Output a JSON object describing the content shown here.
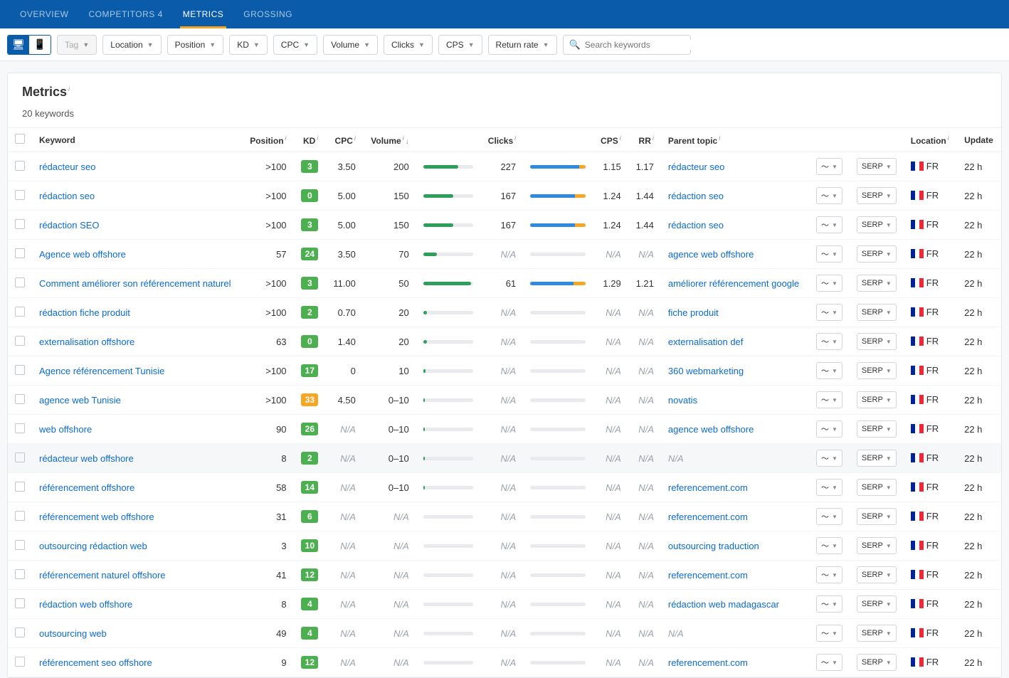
{
  "nav": {
    "tabs": [
      "OVERVIEW",
      "COMPETITORS 4",
      "METRICS",
      "GROSSING"
    ],
    "active": 2
  },
  "filters": {
    "tag": "Tag",
    "location": "Location",
    "position": "Position",
    "kd": "KD",
    "cpc": "CPC",
    "volume": "Volume",
    "clicks": "Clicks",
    "cps": "CPS",
    "return": "Return rate",
    "search_placeholder": "Search keywords"
  },
  "panel": {
    "title": "Metrics",
    "count": "20 keywords"
  },
  "headers": {
    "keyword": "Keyword",
    "position": "Position",
    "kd": "KD",
    "cpc": "CPC",
    "volume": "Volume",
    "clicks": "Clicks",
    "cps": "CPS",
    "rr": "RR",
    "parent": "Parent topic",
    "location": "Location",
    "update": "Update",
    "serp": "SERP"
  },
  "kd_colors": {
    "green": "#4caf50",
    "dark_green": "#2e7d32",
    "orange": "#f5a623"
  },
  "loc": {
    "code": "FR",
    "flag": [
      "#002395",
      "#ffffff",
      "#ed2939"
    ]
  },
  "rows": [
    {
      "kw": "rédacteur seo",
      "pos": ">100",
      "kd": 3,
      "kdc": "green",
      "cpc": "3.50",
      "vol": "200",
      "volpct": 70,
      "clicks": "227",
      "clkpct": 88,
      "cps": "1.15",
      "rr": "1.17",
      "parent": "rédacteur seo",
      "upd": "22 h"
    },
    {
      "kw": "rédaction seo",
      "pos": ">100",
      "kd": 0,
      "kdc": "green",
      "cpc": "5.00",
      "vol": "150",
      "volpct": 60,
      "clicks": "167",
      "clkpct": 80,
      "cps": "1.24",
      "rr": "1.44",
      "parent": "rédaction seo",
      "upd": "22 h"
    },
    {
      "kw": "rédaction SEO",
      "pos": ">100",
      "kd": 3,
      "kdc": "green",
      "cpc": "5.00",
      "vol": "150",
      "volpct": 60,
      "clicks": "167",
      "clkpct": 80,
      "cps": "1.24",
      "rr": "1.44",
      "parent": "rédaction seo",
      "upd": "22 h"
    },
    {
      "kw": "Agence web offshore",
      "pos": "57",
      "kd": 24,
      "kdc": "green",
      "cpc": "3.50",
      "vol": "70",
      "volpct": 28,
      "clicks": "N/A",
      "clkpct": 0,
      "cps": "N/A",
      "rr": "N/A",
      "parent": "agence web offshore",
      "upd": "22 h"
    },
    {
      "kw": "Comment améliorer son référencement naturel",
      "pos": ">100",
      "kd": 3,
      "kdc": "green",
      "cpc": "11.00",
      "vol": "50",
      "volpct": 96,
      "clicks": "61",
      "clkpct": 78,
      "cps": "1.29",
      "rr": "1.21",
      "parent": "améliorer référencement google",
      "upd": "22 h"
    },
    {
      "kw": "rédaction fiche produit",
      "pos": ">100",
      "kd": 2,
      "kdc": "green",
      "cpc": "0.70",
      "vol": "20",
      "volpct": 8,
      "clicks": "N/A",
      "clkpct": 0,
      "cps": "N/A",
      "rr": "N/A",
      "parent": "fiche produit",
      "upd": "22 h"
    },
    {
      "kw": "externalisation offshore",
      "pos": "63",
      "kd": 0,
      "kdc": "green",
      "cpc": "1.40",
      "vol": "20",
      "volpct": 8,
      "clicks": "N/A",
      "clkpct": 0,
      "cps": "N/A",
      "rr": "N/A",
      "parent": "externalisation def",
      "upd": "22 h"
    },
    {
      "kw": "Agence référencement Tunisie",
      "pos": ">100",
      "kd": 17,
      "kdc": "green",
      "cpc": "0",
      "vol": "10",
      "volpct": 4,
      "clicks": "N/A",
      "clkpct": 0,
      "cps": "N/A",
      "rr": "N/A",
      "parent": "360 webmarketing",
      "upd": "22 h"
    },
    {
      "kw": "agence web Tunisie",
      "pos": ">100",
      "kd": 33,
      "kdc": "orange",
      "cpc": "4.50",
      "vol": "0–10",
      "volpct": 3,
      "clicks": "N/A",
      "clkpct": 0,
      "cps": "N/A",
      "rr": "N/A",
      "parent": "novatis",
      "upd": "22 h"
    },
    {
      "kw": "web offshore",
      "pos": "90",
      "kd": 26,
      "kdc": "green",
      "cpc": "N/A",
      "vol": "0–10",
      "volpct": 3,
      "clicks": "N/A",
      "clkpct": 0,
      "cps": "N/A",
      "rr": "N/A",
      "parent": "agence web offshore",
      "upd": "22 h"
    },
    {
      "kw": "rédacteur web offshore",
      "pos": "8",
      "kd": 2,
      "kdc": "green",
      "cpc": "N/A",
      "vol": "0–10",
      "volpct": 3,
      "clicks": "N/A",
      "clkpct": 0,
      "cps": "N/A",
      "rr": "N/A",
      "parent": "N/A",
      "upd": "22 h",
      "hl": true
    },
    {
      "kw": "référencement offshore",
      "pos": "58",
      "kd": 14,
      "kdc": "green",
      "cpc": "N/A",
      "vol": "0–10",
      "volpct": 3,
      "clicks": "N/A",
      "clkpct": 0,
      "cps": "N/A",
      "rr": "N/A",
      "parent": "referencement.com",
      "upd": "22 h"
    },
    {
      "kw": "référencement web offshore",
      "pos": "31",
      "kd": 6,
      "kdc": "green",
      "cpc": "N/A",
      "vol": "N/A",
      "volpct": 0,
      "clicks": "N/A",
      "clkpct": 0,
      "cps": "N/A",
      "rr": "N/A",
      "parent": "referencement.com",
      "upd": "22 h"
    },
    {
      "kw": "outsourcing rédaction web",
      "pos": "3",
      "kd": 10,
      "kdc": "green",
      "cpc": "N/A",
      "vol": "N/A",
      "volpct": 0,
      "clicks": "N/A",
      "clkpct": 0,
      "cps": "N/A",
      "rr": "N/A",
      "parent": "outsourcing traduction",
      "upd": "22 h"
    },
    {
      "kw": "référencement naturel offshore",
      "pos": "41",
      "kd": 12,
      "kdc": "green",
      "cpc": "N/A",
      "vol": "N/A",
      "volpct": 0,
      "clicks": "N/A",
      "clkpct": 0,
      "cps": "N/A",
      "rr": "N/A",
      "parent": "referencement.com",
      "upd": "22 h"
    },
    {
      "kw": "rédaction web offshore",
      "pos": "8",
      "kd": 4,
      "kdc": "green",
      "cpc": "N/A",
      "vol": "N/A",
      "volpct": 0,
      "clicks": "N/A",
      "clkpct": 0,
      "cps": "N/A",
      "rr": "N/A",
      "parent": "rédaction web madagascar",
      "upd": "22 h"
    },
    {
      "kw": "outsourcing web",
      "pos": "49",
      "kd": 4,
      "kdc": "green",
      "cpc": "N/A",
      "vol": "N/A",
      "volpct": 0,
      "clicks": "N/A",
      "clkpct": 0,
      "cps": "N/A",
      "rr": "N/A",
      "parent": "N/A",
      "upd": "22 h"
    },
    {
      "kw": "référencement seo offshore",
      "pos": "9",
      "kd": 12,
      "kdc": "green",
      "cpc": "N/A",
      "vol": "N/A",
      "volpct": 0,
      "clicks": "N/A",
      "clkpct": 0,
      "cps": "N/A",
      "rr": "N/A",
      "parent": "referencement.com",
      "upd": "22 h"
    }
  ]
}
